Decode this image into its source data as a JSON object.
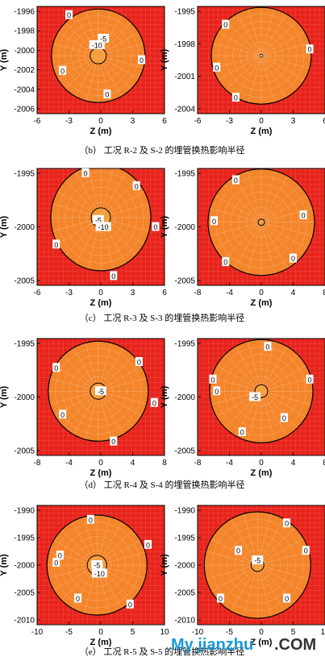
{
  "captions": [
    "（b） 工况 R-2 及 S-2 的埋管换热影响半径",
    "（c） 工况 R-3 及 S-3 的埋管换热影响半径",
    "（d） 工况 R-4 及 S-4 的埋管换热影响半径",
    "（e） 工况 R-5 及 S-5 的埋管换热影响半径"
  ],
  "watermark": {
    "main": "My jianzhu",
    "suffix": ".COM"
  },
  "colors": {
    "outer": "#e8231b",
    "inner": "#f4852b",
    "core": "#f4a040",
    "grid": "#ffffff"
  },
  "chart_data": [
    {
      "type": "contour",
      "panel": "R-2",
      "xlabel": "Z (m)",
      "ylabel": "Y (m)",
      "xticks": [
        "-6",
        "-3",
        "0",
        "3",
        "6"
      ],
      "yticks": [
        "-1996",
        "-1998",
        "-2000",
        "-2002",
        "-2004",
        "-2006"
      ],
      "contour_labels": [
        "0",
        "0",
        "0",
        "0",
        "-10",
        "-5"
      ]
    },
    {
      "type": "contour",
      "panel": "S-2",
      "xlabel": "Z (m)",
      "ylabel": "Y (m)",
      "xticks": [
        "-6",
        "-3",
        "0",
        "3",
        "6"
      ],
      "yticks": [
        "-1995",
        "-1998",
        "-2001",
        "-2004"
      ],
      "contour_labels": [
        "0",
        "0",
        "0",
        "0"
      ]
    },
    {
      "type": "contour",
      "panel": "R-3",
      "xlabel": "Z (m)",
      "ylabel": "Y (m)",
      "xticks": [
        "-6",
        "-3",
        "0",
        "3",
        "6"
      ],
      "yticks": [
        "-1995",
        "-2000",
        "-2005"
      ],
      "contour_labels": [
        "0",
        "0",
        "0",
        "0",
        "0",
        "-5",
        "-10"
      ]
    },
    {
      "type": "contour",
      "panel": "S-3",
      "xlabel": "Z (m)",
      "ylabel": "Y (m)",
      "xticks": [
        "-8",
        "-4",
        "0",
        "4",
        "8"
      ],
      "yticks": [
        "-1995",
        "-2000",
        "-2005"
      ],
      "contour_labels": [
        "0",
        "0",
        "0",
        "0",
        "0"
      ]
    },
    {
      "type": "contour",
      "panel": "R-4",
      "xlabel": "Z (m)",
      "ylabel": "Y (m)",
      "xticks": [
        "-8",
        "-4",
        "0",
        "4",
        "8"
      ],
      "yticks": [
        "-1995",
        "-2000",
        "-2005"
      ],
      "contour_labels": [
        "0",
        "0",
        "0",
        "0",
        "0",
        "-5"
      ]
    },
    {
      "type": "contour",
      "panel": "S-4",
      "xlabel": "Z (m)",
      "ylabel": "Y (m)",
      "xticks": [
        "-8",
        "-4",
        "0",
        "4",
        "8"
      ],
      "yticks": [
        "-1995",
        "-2000",
        "-2005"
      ],
      "contour_labels": [
        "0",
        "0",
        "0",
        "0",
        "0",
        "0",
        "-5"
      ]
    },
    {
      "type": "contour",
      "panel": "R-5",
      "xlabel": "Z (m)",
      "ylabel": "Y (m)",
      "xticks": [
        "-10",
        "-5",
        "0",
        "5",
        "10"
      ],
      "yticks": [
        "-1990",
        "-1995",
        "-2000",
        "-2005",
        "-2010"
      ],
      "contour_labels": [
        "0",
        "0",
        "0",
        "0",
        "0",
        "0",
        "-5",
        "-10"
      ]
    },
    {
      "type": "contour",
      "panel": "S-5",
      "xlabel": "Z (m)",
      "ylabel": "Y (m)",
      "xticks": [
        "-10",
        "-5",
        "0",
        "5",
        "10"
      ],
      "yticks": [
        "-1990",
        "-1995",
        "-2000",
        "-2005",
        "-2010"
      ],
      "contour_labels": [
        "0",
        "0",
        "0",
        "0",
        "0",
        "-5"
      ]
    }
  ]
}
